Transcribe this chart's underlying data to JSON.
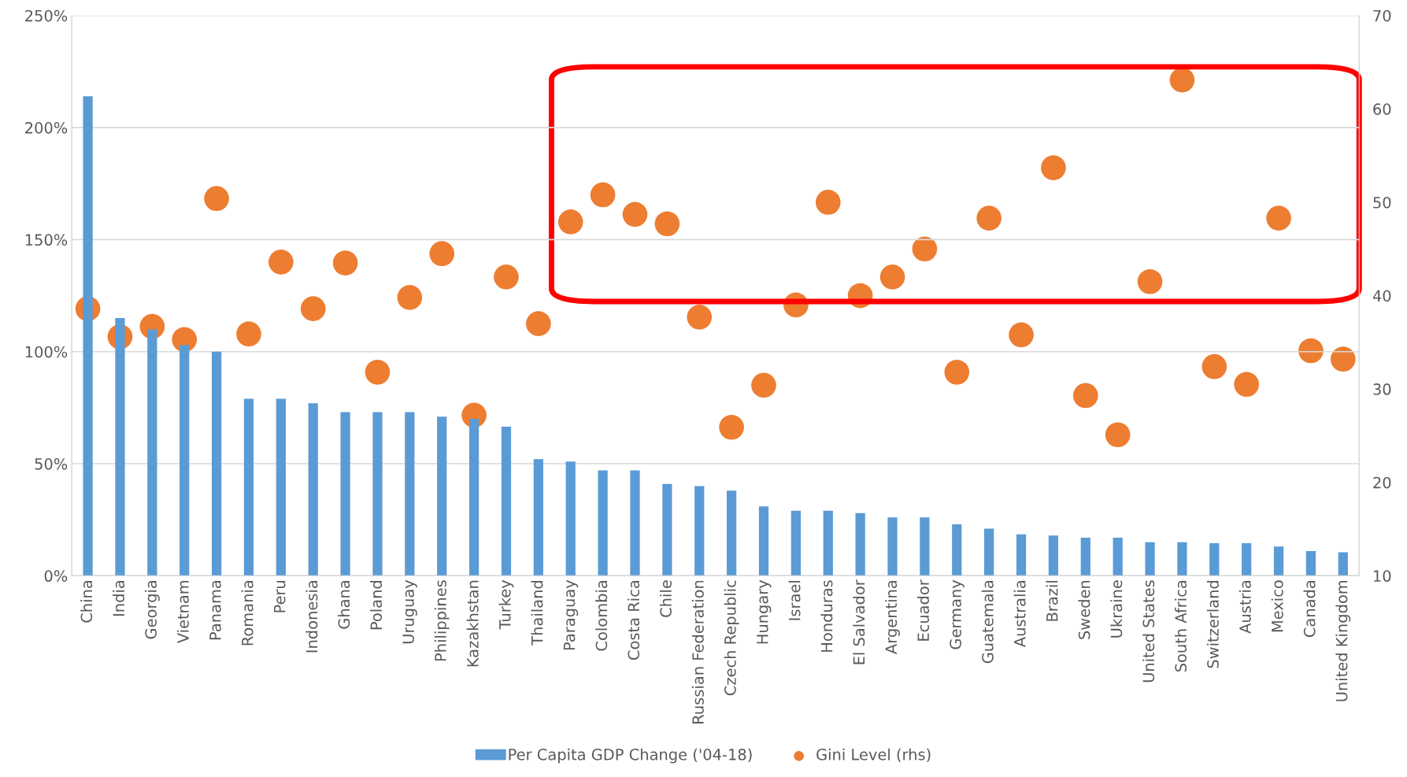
{
  "chart_data": {
    "type": "bar",
    "categories": [
      "China",
      "India",
      "Georgia",
      "Vietnam",
      "Panama",
      "Romania",
      "Peru",
      "Indonesia",
      "Ghana",
      "Poland",
      "Uruguay",
      "Philippines",
      "Kazakhstan",
      "Turkey",
      "Thailand",
      "Paraguay",
      "Colombia",
      "Costa Rica",
      "Chile",
      "Russian Federation",
      "Czech Republic",
      "Hungary",
      "Israel",
      "Honduras",
      "El Salvador",
      "Argentina",
      "Ecuador",
      "Germany",
      "Guatemala",
      "Australia",
      "Brazil",
      "Sweden",
      "Ukraine",
      "United States",
      "South Africa",
      "Switzerland",
      "Austria",
      "Mexico",
      "Canada",
      "United Kingdom"
    ],
    "series": [
      {
        "name": "Per Capita GDP Change ('04-18)",
        "color": "#5b9bd5",
        "values": [
          214,
          115,
          110,
          103,
          100,
          79,
          79,
          77,
          73,
          73,
          73,
          71,
          70,
          66.5,
          52,
          51,
          47,
          47,
          41,
          40,
          38,
          31,
          29,
          29,
          28,
          26,
          26,
          23,
          21,
          18.5,
          18,
          17,
          17,
          15,
          15,
          14.5,
          14.5,
          13,
          11,
          10.5
        ]
      },
      {
        "name": "Gini Level (rhs)",
        "type": "scatter",
        "axis": "y2",
        "color": "#ed7d31",
        "marker": "circle",
        "values": [
          38.6,
          35.6,
          36.7,
          35.3,
          50.4,
          35.9,
          43.6,
          38.6,
          43.5,
          31.8,
          39.8,
          44.5,
          27.2,
          42.0,
          37.0,
          47.9,
          50.8,
          48.7,
          47.7,
          37.7,
          25.9,
          30.4,
          39.0,
          50.0,
          40.0,
          42.0,
          45.0,
          31.8,
          48.3,
          35.8,
          53.7,
          29.3,
          25.1,
          41.5,
          63.1,
          32.4,
          30.5,
          48.3,
          34.1,
          33.2
        ]
      }
    ],
    "ylim": [
      0,
      250
    ],
    "yticks": [
      {
        "value": 0,
        "label": "0%"
      },
      {
        "value": 50,
        "label": "50%"
      },
      {
        "value": 100,
        "label": "100%"
      },
      {
        "value": 150,
        "label": "150%"
      },
      {
        "value": 200,
        "label": "200%"
      },
      {
        "value": 250,
        "label": "250%"
      }
    ],
    "y2lim": [
      10,
      70
    ],
    "y2ticks": [
      10,
      20,
      30,
      40,
      50,
      60,
      70
    ],
    "grid": "y",
    "legend": "bottom"
  }
}
